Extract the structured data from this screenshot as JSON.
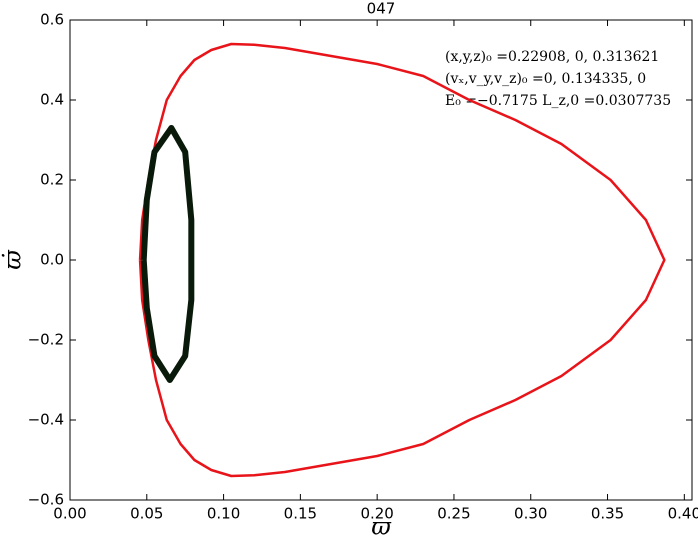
{
  "chart_data": {
    "type": "line",
    "title": "047",
    "x_label": "ϖ",
    "y_label": "ϖ̇",
    "annotations": [
      "(x,y,z)₀ =0.22908, 0, 0.313621",
      "(vₓ,v_y,v_z)₀ =0, 0.134335, 0",
      "E₀ =−0.7175  L_z,0 =0.0307735"
    ],
    "xlim": [
      0,
      0.405
    ],
    "ylim": [
      -0.6,
      0.6
    ],
    "xticks": [
      {
        "value": 0,
        "label": "0.00"
      },
      0.05,
      {
        "value": 0.1,
        "label": "0.10"
      },
      0.15,
      {
        "value": 0.2,
        "label": "0.20"
      },
      0.25,
      {
        "value": 0.3,
        "label": "0.30"
      },
      0.35,
      {
        "value": 0.4,
        "label": "0.40"
      }
    ],
    "yticks": [
      {
        "value": -0.6,
        "label": "−0.6"
      },
      {
        "value": -0.4,
        "label": "−0.4"
      },
      {
        "value": -0.2,
        "label": "−0.2"
      },
      {
        "value": 0,
        "label": "0.0"
      },
      0.2,
      0.4,
      0.6
    ],
    "series": [
      {
        "color": "#e8141a",
        "x": [
          0.0456,
          0.047,
          0.051,
          0.056,
          0.063,
          0.072,
          0.081,
          0.092,
          0.105,
          0.12,
          0.14,
          0.17,
          0.2,
          0.23,
          0.26,
          0.29,
          0.32,
          0.352,
          0.375,
          0.387,
          0.375,
          0.352,
          0.32,
          0.29,
          0.26,
          0.23,
          0.2,
          0.17,
          0.14,
          0.12,
          0.105,
          0.092,
          0.081,
          0.072,
          0.063,
          0.056,
          0.051,
          0.047,
          0.0456
        ],
        "y": [
          0,
          0.1,
          0.2,
          0.3,
          0.4,
          0.46,
          0.5,
          0.525,
          0.54,
          0.538,
          0.53,
          0.51,
          0.49,
          0.46,
          0.4,
          0.35,
          0.29,
          0.2,
          0.1,
          0,
          -0.1,
          -0.2,
          -0.29,
          -0.35,
          -0.4,
          -0.46,
          -0.49,
          -0.51,
          -0.53,
          -0.538,
          -0.54,
          -0.525,
          -0.5,
          -0.46,
          -0.4,
          -0.3,
          -0.2,
          -0.1,
          0
        ]
      },
      {
        "color": "#0a1a0a",
        "x": [
          0.048,
          0.05,
          0.055,
          0.066,
          0.075,
          0.079,
          0.079,
          0.079,
          0.075,
          0.065,
          0.055,
          0.05,
          0.048
        ],
        "y": [
          0,
          0.15,
          0.27,
          0.33,
          0.27,
          0.1,
          0,
          -0.1,
          -0.24,
          -0.3,
          -0.24,
          -0.12,
          0
        ]
      }
    ]
  }
}
